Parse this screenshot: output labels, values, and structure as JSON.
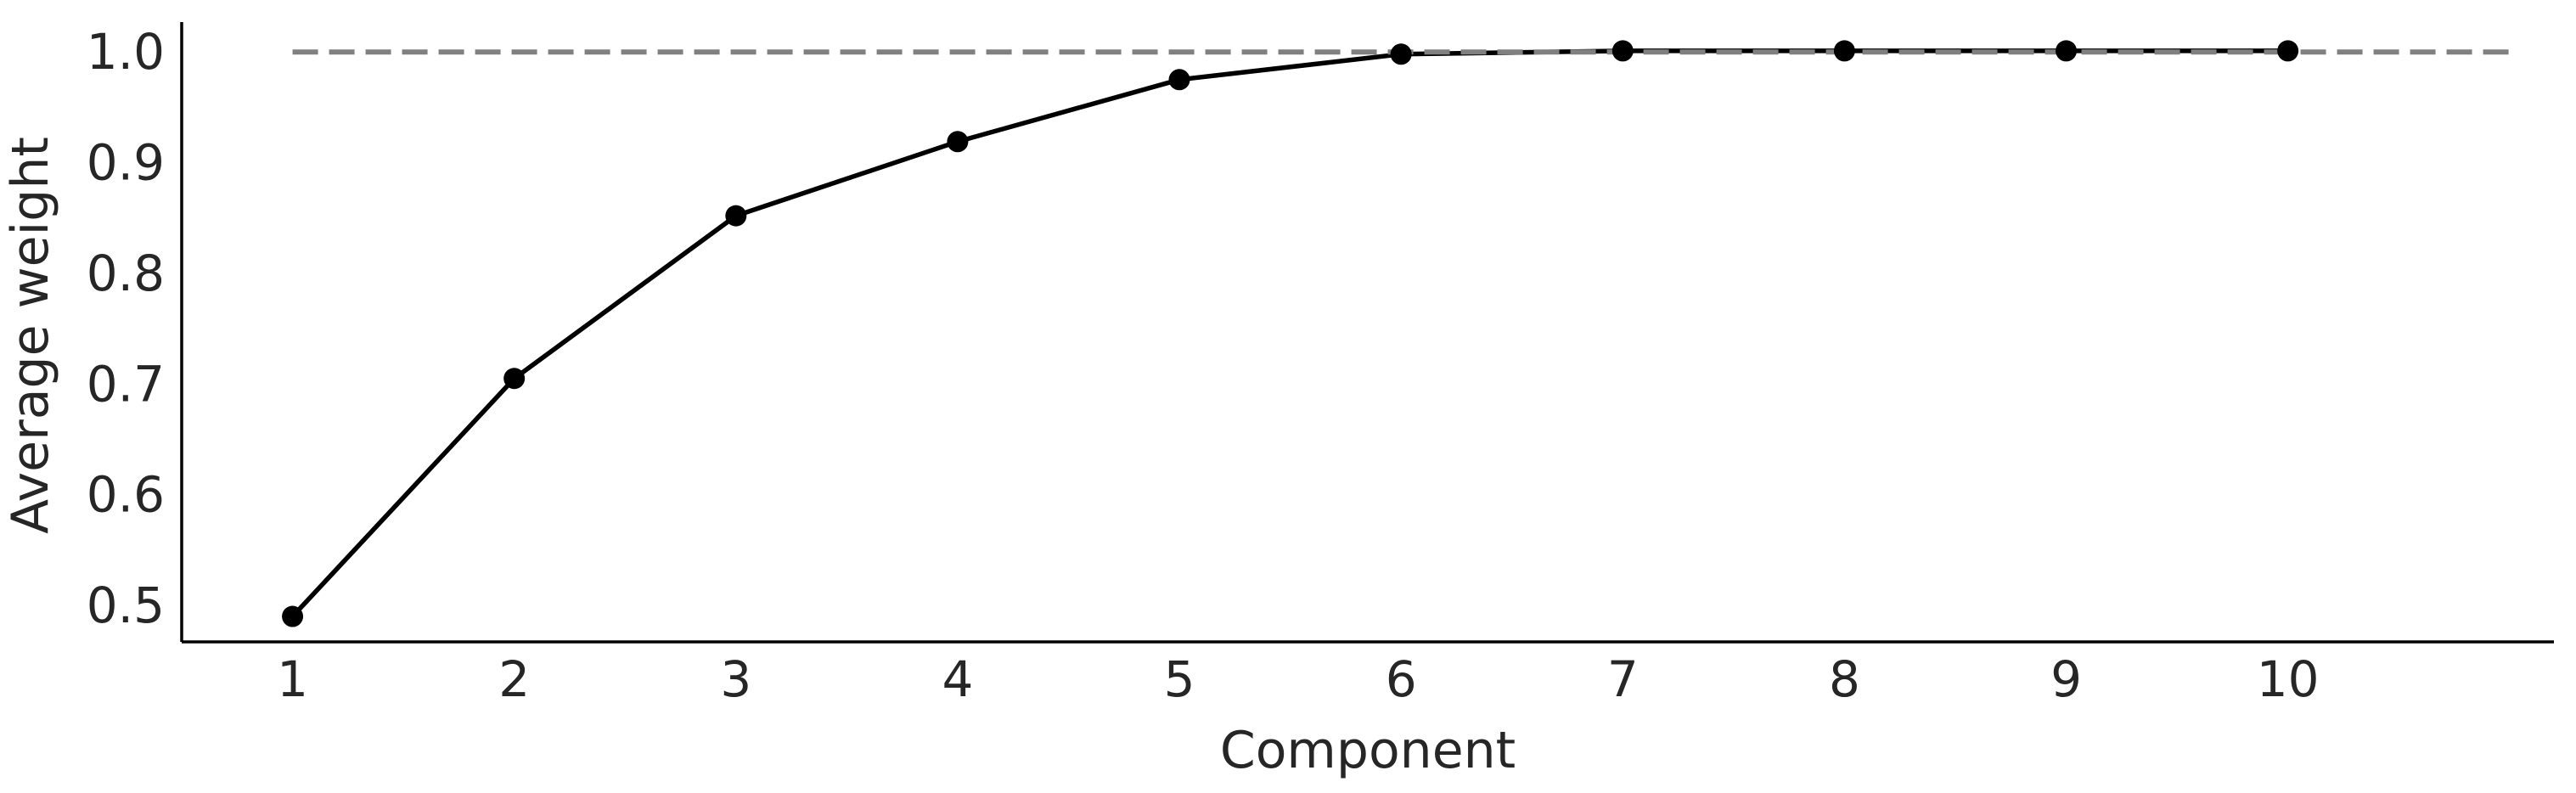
{
  "chart_data": {
    "type": "line",
    "xlabel": "Component",
    "ylabel": "Average weight",
    "x": [
      1,
      2,
      3,
      4,
      5,
      6,
      7,
      8,
      9,
      10
    ],
    "x_ticks": [
      "1",
      "2",
      "3",
      "4",
      "5",
      "6",
      "7",
      "8",
      "9",
      "10"
    ],
    "y_ticks": [
      "0.5",
      "0.6",
      "0.7",
      "0.8",
      "0.9",
      "1.0"
    ],
    "xlim": [
      0.5,
      11.2
    ],
    "ylim": [
      0.467,
      1.027
    ],
    "series": [
      {
        "values": [
          0.49,
          0.705,
          0.852,
          0.919,
          0.975,
          0.998,
          1.001,
          1.001,
          1.001,
          1.001
        ],
        "color": "#000000",
        "marker": "circle"
      }
    ],
    "reference_line": {
      "y": 1.0,
      "x_range": [
        1,
        11
      ],
      "style": "dashed",
      "color": "#808080"
    },
    "grid": false,
    "legend": false
  }
}
